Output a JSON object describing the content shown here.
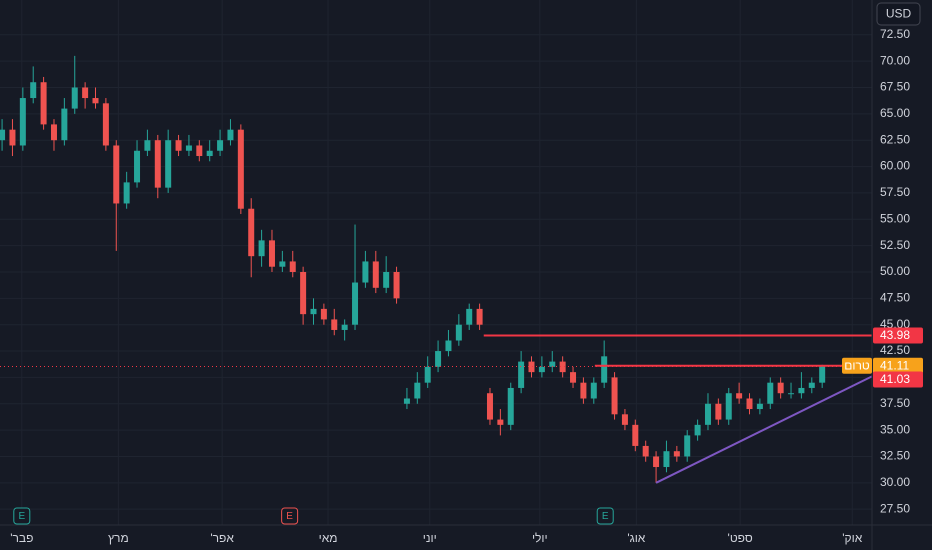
{
  "chart_data": {
    "type": "candlestick",
    "currency": "USD",
    "up_color": "#26a69a",
    "down_color": "#ef5350",
    "open": [
      62.5,
      63.5,
      62,
      66.5,
      68,
      64,
      62.5,
      65.5,
      67.5,
      66.5,
      66,
      62,
      56.5,
      58.5,
      61.5,
      62.5,
      58,
      62.5,
      61.5,
      62,
      61,
      61.5,
      62.5,
      63.5,
      56,
      51.5,
      53,
      50.5,
      51,
      50,
      46,
      46.5,
      45.5,
      44.5,
      45,
      49,
      51,
      48.5,
      50,
      37.5,
      38,
      39.5,
      41,
      42.5,
      43.5,
      45,
      46.5,
      38.5,
      36,
      35.5,
      39,
      41.5,
      40.5,
      41,
      41.5,
      40.5,
      39.5,
      38,
      39.5,
      40,
      36.5,
      35.5,
      33.5,
      32.5,
      31.5,
      33,
      32.5,
      34.5,
      35.5,
      37.5,
      36,
      38.5,
      38,
      37,
      37.5,
      39.5,
      38.5,
      38.5,
      39,
      39.5
    ],
    "high": [
      64.5,
      64.5,
      67.5,
      69.5,
      68.5,
      64.5,
      66.5,
      70.5,
      68,
      67.5,
      66.5,
      62.5,
      59.5,
      62.5,
      63.5,
      63,
      63.5,
      63,
      63,
      62.5,
      62.5,
      63.5,
      64.5,
      64,
      57,
      54,
      54,
      52,
      52,
      50.5,
      47.5,
      47,
      46.5,
      45.5,
      54.5,
      52,
      52,
      51.5,
      50.5,
      39,
      40.5,
      42,
      43.5,
      44.5,
      46,
      47,
      47,
      39,
      37,
      39.5,
      42.5,
      42,
      42,
      42.5,
      42,
      41,
      40,
      40,
      43.5,
      40.5,
      37,
      36,
      34,
      33,
      34,
      33.5,
      35,
      36,
      38.5,
      38,
      39,
      39.5,
      38.5,
      38,
      40,
      40,
      39.5,
      40.5,
      40,
      41.2
    ],
    "low": [
      61.5,
      61,
      61.5,
      66,
      63.5,
      61.5,
      62,
      65,
      65.5,
      65.5,
      61.5,
      52,
      56,
      58,
      61,
      57,
      57.5,
      61,
      61,
      60.5,
      60.5,
      61,
      62,
      55.5,
      49.5,
      50.5,
      50,
      50,
      49.5,
      45,
      45,
      45,
      44,
      43.5,
      44.5,
      48.5,
      48,
      48,
      47,
      37,
      37.5,
      39,
      40.5,
      42,
      43,
      44.5,
      44.5,
      35.5,
      34.5,
      35,
      38.5,
      40,
      40,
      40.5,
      40,
      39,
      37.5,
      37.5,
      39,
      36,
      35,
      33,
      32,
      30,
      31,
      32,
      32,
      34,
      35,
      35.5,
      35.5,
      37.5,
      36.5,
      36.5,
      37,
      38,
      38,
      38,
      38.5,
      39
    ],
    "close": [
      63.5,
      62,
      66.5,
      68,
      64,
      62.5,
      65.5,
      67.5,
      66.5,
      66,
      62,
      56.5,
      58.5,
      61.5,
      62.5,
      58,
      62.5,
      61.5,
      62,
      61,
      61.5,
      62.5,
      63.5,
      56,
      51.5,
      53,
      50.5,
      51,
      50,
      46,
      46.5,
      45.5,
      44.5,
      45,
      49,
      51,
      48.5,
      50,
      47.5,
      38,
      39.5,
      41,
      42.5,
      43.5,
      45,
      46.5,
      45,
      36,
      35.5,
      39,
      41.5,
      40.5,
      41,
      41.5,
      40.5,
      39.5,
      38,
      39.5,
      42,
      36.5,
      35.5,
      33.5,
      32.5,
      31.5,
      33,
      32.5,
      34.5,
      35.5,
      37.5,
      36,
      38.5,
      38,
      37,
      37.5,
      39.5,
      38.5,
      38.5,
      39,
      39.5,
      41.03
    ],
    "xlim": [
      -0.2,
      83.8
    ],
    "xticks": [
      {
        "value": 1.9,
        "label": "פבר'"
      },
      {
        "value": 11.2,
        "label": "מרץ"
      },
      {
        "value": 21.2,
        "label": "אפר'"
      },
      {
        "value": 31.4,
        "label": "מאי"
      },
      {
        "value": 41.2,
        "label": "יוני"
      },
      {
        "value": 51.8,
        "label": "יולי"
      },
      {
        "value": 61.1,
        "label": "אוג'"
      },
      {
        "value": 71.1,
        "label": "ספט'"
      },
      {
        "value": 81.9,
        "label": "אוק'"
      }
    ],
    "ylim": [
      26,
      75.8
    ],
    "yticks": [
      {
        "value": 27.5,
        "label": "27.50"
      },
      {
        "value": 30,
        "label": "30.00"
      },
      {
        "value": 32.5,
        "label": "32.50"
      },
      {
        "value": 35,
        "label": "35.00"
      },
      {
        "value": 37.5,
        "label": "37.50"
      },
      {
        "value": 40,
        "label": "40.00"
      },
      {
        "value": 42.5,
        "label": "42.50"
      },
      {
        "value": 45,
        "label": "45.00"
      },
      {
        "value": 47.5,
        "label": "47.50"
      },
      {
        "value": 50,
        "label": "50.00"
      },
      {
        "value": 52.5,
        "label": "52.50"
      },
      {
        "value": 55,
        "label": "55.00"
      },
      {
        "value": 57.5,
        "label": "57.50"
      },
      {
        "value": 60,
        "label": "60.00"
      },
      {
        "value": 62.5,
        "label": "62.50"
      },
      {
        "value": 65,
        "label": "65.00"
      },
      {
        "value": 67.5,
        "label": "67.50"
      },
      {
        "value": 70,
        "label": "70.00"
      },
      {
        "value": 72.5,
        "label": "72.50"
      }
    ],
    "grid": true,
    "levels": [
      {
        "value": 43.98,
        "start": 46.4,
        "color": "#f23645",
        "tag_color": "#f23645"
      },
      {
        "value": 41.11,
        "start": 57.1,
        "color": "#f23645",
        "tag_color": "#f7a21b",
        "tag_label": "טרום"
      }
    ],
    "current_price": {
      "value": 41.03,
      "color": "#f23645"
    },
    "trendline": {
      "x": [
        63,
        83.8
      ],
      "y": [
        30,
        40.1
      ],
      "color": "#7e57c2"
    },
    "earnings": [
      {
        "x": 1.9,
        "label": "E",
        "color": "#26a69a"
      },
      {
        "x": 27.7,
        "label": "E",
        "color": "#ef5350"
      },
      {
        "x": 58.1,
        "label": "E",
        "color": "#26a69a"
      }
    ]
  }
}
